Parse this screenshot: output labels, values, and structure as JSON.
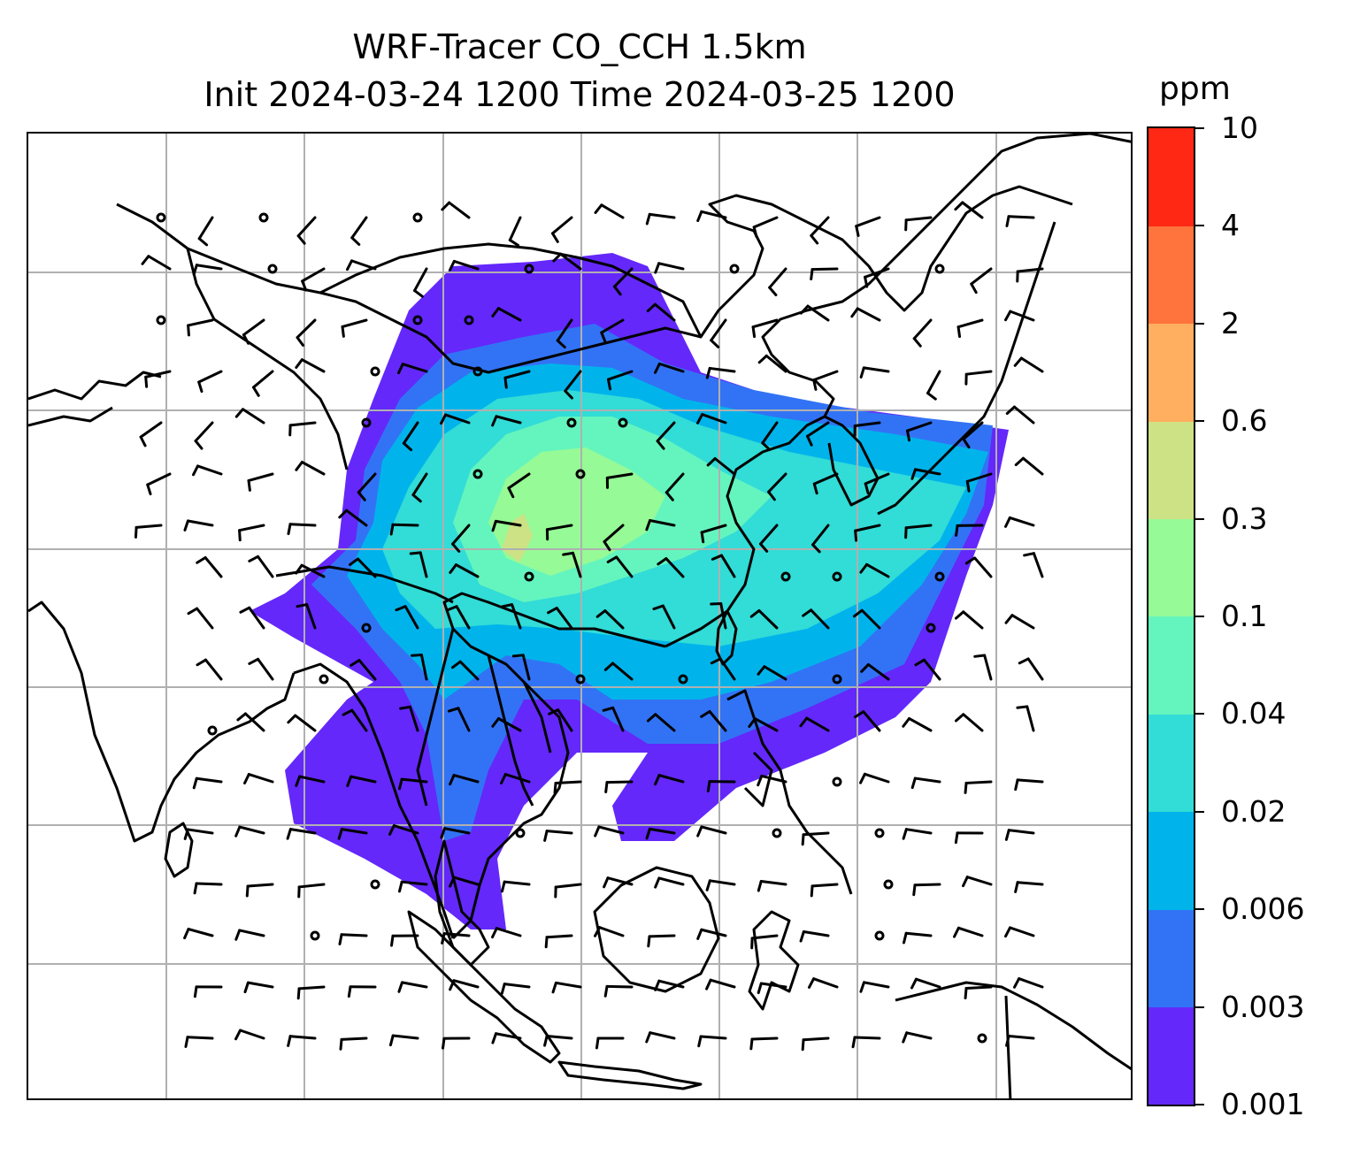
{
  "title": {
    "line1": "WRF-Tracer CO_CCH 1.5km",
    "line2": "Init 2024-03-24 1200 Time 2024-03-25 1200"
  },
  "colorbar": {
    "unit": "ppm",
    "levels": [
      "0.001",
      "0.003",
      "0.006",
      "0.02",
      "0.04",
      "0.1",
      "0.3",
      "0.6",
      "2",
      "4",
      "10"
    ],
    "colors": [
      "#6428fa",
      "#3273f5",
      "#00b4eb",
      "#32dcd7",
      "#64f5be",
      "#96fa96",
      "#cde185",
      "#ffaf5f",
      "#ff733c",
      "#ff2814"
    ]
  },
  "map": {
    "grid": "on",
    "features": [
      "coastlines",
      "country-borders",
      "wind-barbs",
      "tracer-concentration-fill"
    ]
  }
}
